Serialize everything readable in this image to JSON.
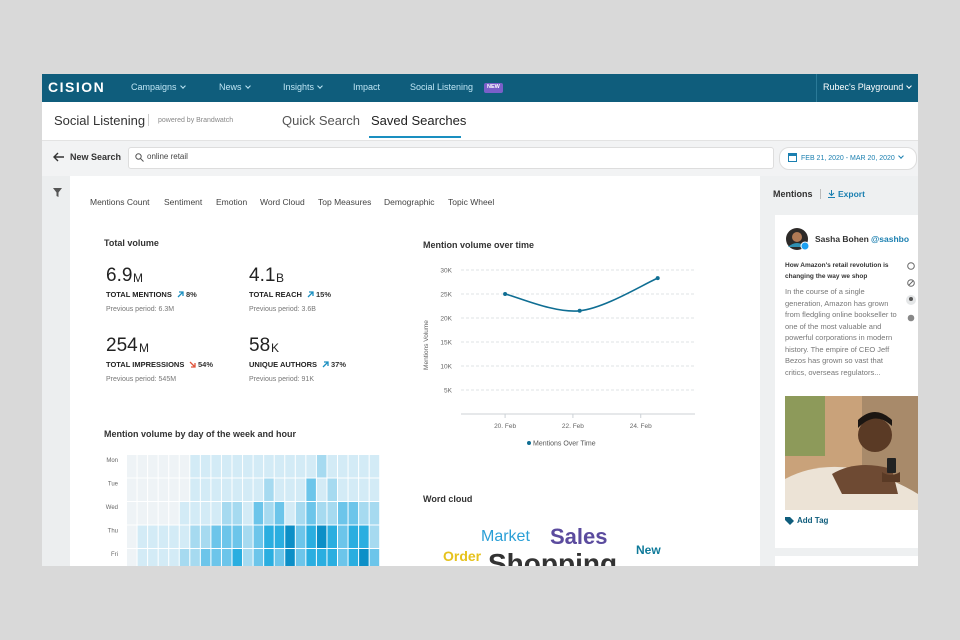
{
  "nav": {
    "logo": "CISION",
    "items": [
      "Campaigns",
      "News",
      "Insights",
      "Impact",
      "Social Listening"
    ],
    "badge": "NEW",
    "account": "Rubec's Playground"
  },
  "subheader": {
    "title": "Social Listening",
    "powered": "powered by Brandwatch",
    "tabs": [
      "Quick Search",
      "Saved Searches"
    ]
  },
  "search": {
    "back": "New Search",
    "query": "online retail",
    "date_range": "FEB 21, 2020 - MAR 20, 2020"
  },
  "tabs": [
    "Mentions Count",
    "Sentiment",
    "Emotion",
    "Word Cloud",
    "Top Measures",
    "Demographic",
    "Topic Wheel"
  ],
  "metrics": {
    "title": "Total volume",
    "items": [
      {
        "value": "6.9",
        "unit": "M",
        "label": "TOTAL MENTIONS",
        "change": "8%",
        "previous": "Previous period: 6.3M"
      },
      {
        "value": "4.1",
        "unit": "B",
        "label": "TOTAL REACH",
        "change": "15%",
        "previous": "Previous period: 3.6B"
      },
      {
        "value": "254",
        "unit": "M",
        "label": "TOTAL IMPRESSIONS",
        "change": "54%",
        "previous": "Previous period: 545M"
      },
      {
        "value": "58",
        "unit": "K",
        "label": "UNIQUE AUTHORS",
        "change": "37%",
        "previous": "Previous period: 91K"
      }
    ]
  },
  "chart_data": {
    "type": "line",
    "title": "Mention volume over time",
    "y_label": "Mentions Volume",
    "x": [
      20,
      22.2,
      24.5
    ],
    "xlim": [
      18.7,
      25.6
    ],
    "xticks": [
      {
        "value": 20,
        "label": "20. Feb"
      },
      {
        "value": 22,
        "label": "22. Feb"
      },
      {
        "value": 24,
        "label": "24. Feb"
      }
    ],
    "ylim": [
      0,
      30000
    ],
    "yticks": [
      {
        "value": 5000,
        "label": "5K"
      },
      {
        "value": 10000,
        "label": "10K"
      },
      {
        "value": 15000,
        "label": "15K"
      },
      {
        "value": 20000,
        "label": "20K"
      },
      {
        "value": 25000,
        "label": "25K"
      },
      {
        "value": 30000,
        "label": "30K"
      }
    ],
    "grid": true,
    "series": [
      {
        "name": "Mentions Over Time",
        "color": "#0f6e93",
        "values": [
          25000,
          21500,
          28300
        ]
      }
    ]
  },
  "heatmap": {
    "title": "Mention volume by day of the week and hour",
    "rows": [
      "Mon",
      "Tue",
      "Wed",
      "Thu",
      "Fri"
    ],
    "colors": [
      "#eef3f6",
      "#d3ebf6",
      "#a6daf0",
      "#6cc5ea",
      "#2aaee0",
      "#0c8fc7"
    ],
    "values": [
      [
        0,
        0,
        0,
        0,
        0,
        0,
        1,
        1,
        1,
        1,
        1,
        1,
        1,
        1,
        1,
        1,
        1,
        1,
        2,
        1,
        1,
        1,
        1,
        1
      ],
      [
        0,
        0,
        0,
        0,
        0,
        0,
        1,
        1,
        1,
        1,
        1,
        1,
        1,
        2,
        1,
        1,
        1,
        3,
        1,
        2,
        1,
        1,
        1,
        1
      ],
      [
        0,
        0,
        0,
        0,
        0,
        1,
        1,
        1,
        1,
        2,
        2,
        1,
        3,
        2,
        3,
        1,
        2,
        3,
        2,
        2,
        3,
        3,
        2,
        2
      ],
      [
        0,
        1,
        1,
        1,
        1,
        1,
        2,
        2,
        3,
        3,
        3,
        2,
        3,
        4,
        4,
        5,
        3,
        4,
        5,
        4,
        3,
        4,
        4,
        2
      ],
      [
        0,
        1,
        1,
        1,
        1,
        2,
        2,
        3,
        3,
        3,
        4,
        2,
        3,
        4,
        3,
        5,
        3,
        4,
        4,
        4,
        3,
        4,
        5,
        3
      ]
    ]
  },
  "word_cloud": {
    "title": "Word cloud",
    "words": [
      "Market",
      "Sales",
      "Order",
      "Shopping",
      "New"
    ]
  },
  "sidebar": {
    "title": "Mentions",
    "export": "Export",
    "author": "Sasha Bohen",
    "handle": "@sashbo",
    "headline": "How Amazon's retail revolution is changing the way we shop",
    "body": "In the course of a single generation, Amazon has grown from fledgling online bookseller to one of the most valuable and powerful corporations in modern history. The empire of CEO Jeff Bezos has grown so vast that critics, overseas regulators...",
    "add_tag": "Add Tag"
  }
}
